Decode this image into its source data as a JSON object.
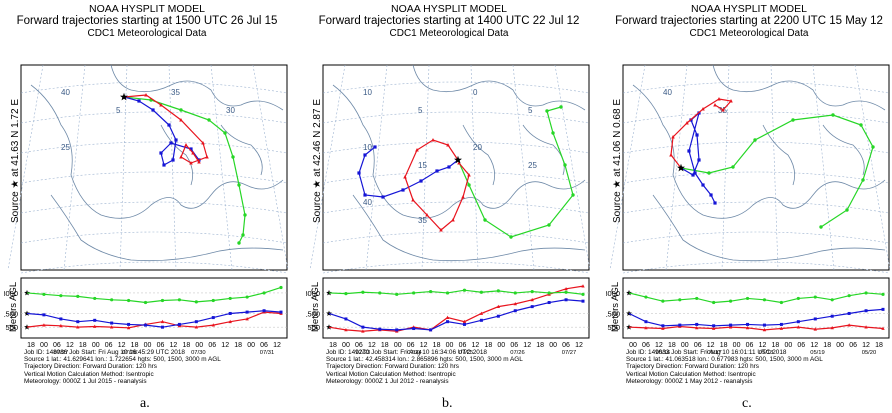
{
  "panels": [
    {
      "label": "a.",
      "title1": "NOAA HYSPLIT MODEL",
      "title2": "Forward trajectories starting at 1500 UTC 26 Jul 15",
      "title3": "CDC1 Meteorological Data",
      "side_label": "Source ★ at 41.63 N 1.72 E",
      "meters_label": "Meters AGL",
      "map_numbers": [
        "40",
        "5",
        "35",
        "30",
        "25"
      ],
      "height_ticks_left": [
        "3000",
        "1500",
        "500"
      ],
      "height_ticks_right": [
        "3500",
        "3000",
        "2500",
        "2000",
        "1500",
        "1000",
        "500"
      ],
      "time_ticks": [
        "18",
        "00",
        "06",
        "12",
        "18",
        "00",
        "06",
        "12",
        "18",
        "00",
        "06",
        "12",
        "18",
        "00",
        "06",
        "12",
        "18",
        "00",
        "06",
        "12"
      ],
      "date_ticks": [
        "07/27",
        "07/28",
        "07/30",
        "07/31"
      ],
      "footer": [
        "Job ID: 148086        Job Start: Fri Aug 10 16:45:29 UTC 2018",
        "Source 1 lat.: 41.629641 lon.: 1.722654  hgts: 500, 1500, 3000 m AGL",
        "Trajectory Direction: Forward     Duration: 120 hrs",
        "Vertical Motion Calculation Method:      Isentropic",
        "Meteorology: 0000Z 1 Jul 2015 - reanalysis"
      ]
    },
    {
      "label": "b.",
      "title1": "NOAA HYSPLIT MODEL",
      "title2": "Forward trajectories starting at 1400 UTC 22 Jul 12",
      "title3": "CDC1 Meteorological Data",
      "side_label": "Source ★ at 42.46 N 2.87 E",
      "meters_label": "Meters AGL",
      "map_numbers": [
        "10",
        "5",
        "0",
        "5",
        "10",
        "15",
        "20",
        "25",
        "40",
        "35"
      ],
      "height_ticks_left": [
        "3000",
        "1500",
        "500"
      ],
      "height_ticks_right": [
        "3500",
        "3000",
        "2500",
        "2000",
        "1500",
        "1000",
        "500"
      ],
      "time_ticks": [
        "18",
        "00",
        "06",
        "12",
        "18",
        "00",
        "06",
        "12",
        "18",
        "00",
        "06",
        "12",
        "18",
        "00",
        "06",
        "12",
        "18",
        "00",
        "06",
        "12"
      ],
      "date_ticks": [
        "07/23",
        "07/24",
        "07/25",
        "07/26",
        "07/27"
      ],
      "footer": [
        "Job ID: 149270        Job Start: Fri Aug 10 16:34:06 UTC 2018",
        "Source 1 lat.: 42.458314 lon.: 2.865896  hgts: 500, 1500, 3000 m AGL",
        "Trajectory Direction: Forward     Duration: 120 hrs",
        "Vertical Motion Calculation Method:      Isentropic",
        "Meteorology: 0000Z 1 Jul 2012 - reanalysis"
      ]
    },
    {
      "label": "c.",
      "title1": "NOAA HYSPLIT MODEL",
      "title2": "Forward trajectories starting at 2200 UTC 15 May 12",
      "title3": "CDC1 Meteorological Data",
      "side_label": "Source ★ at 41.06 N 0.68 E",
      "meters_label": "Meters AGL",
      "map_numbers": [
        "40",
        "35"
      ],
      "height_ticks_left": [
        "3000",
        "1500",
        "500"
      ],
      "height_ticks_right": [
        "3000",
        "2000",
        "1000"
      ],
      "time_ticks": [
        "00",
        "06",
        "12",
        "18",
        "00",
        "06",
        "12",
        "18",
        "00",
        "06",
        "12",
        "18",
        "00",
        "06",
        "12",
        "18",
        "00",
        "06",
        "12",
        "18"
      ],
      "date_ticks": [
        "05/16",
        "05/17",
        "05/18",
        "05/19",
        "05/20"
      ],
      "footer": [
        "Job ID: 149033        Job Start: Fri Aug 10 16:01:11 UTC 2018",
        "Source 1 lat.: 41.063518 lon.: 0.677983  hgts: 500, 1500, 3000 m AGL",
        "Trajectory Direction: Forward     Duration: 120 hrs",
        "Vertical Motion Calculation Method:      Isentropic",
        "Meteorology: 0000Z 1 May 2012 - reanalysis"
      ]
    }
  ],
  "colors": {
    "red": "#e8141e",
    "blue": "#1515d6",
    "green": "#26d626",
    "grid": "#9db3d0",
    "coast": "#6f8aa8"
  },
  "chart_data": [
    {
      "type": "line",
      "title": "NOAA HYSPLIT MODEL Forward trajectories starting at 1500 UTC 26 Jul 15",
      "ylabel": "Meters AGL",
      "start_heights_m": [
        500,
        1500,
        3000
      ],
      "series": [
        {
          "color": "red",
          "start_height_m": 500,
          "height_m": [
            500,
            650,
            600,
            500,
            550,
            500,
            450,
            700,
            900,
            600,
            500,
            650,
            900,
            1100,
            1600,
            1500
          ]
        },
        {
          "color": "blue",
          "start_height_m": 1500,
          "height_m": [
            1500,
            1400,
            1100,
            900,
            1000,
            800,
            700,
            650,
            500,
            700,
            900,
            1200,
            1500,
            1600,
            1700,
            1600
          ]
        },
        {
          "color": "green",
          "start_height_m": 3000,
          "height_m": [
            3000,
            2900,
            2800,
            2750,
            2600,
            2500,
            2450,
            2300,
            2450,
            2500,
            2350,
            2450,
            2600,
            2700,
            3000,
            3400
          ]
        }
      ]
    },
    {
      "type": "line",
      "title": "NOAA HYSPLIT MODEL Forward trajectories starting at 1400 UTC 22 Jul 12",
      "ylabel": "Meters AGL",
      "start_heights_m": [
        500,
        1500,
        3000
      ],
      "series": [
        {
          "color": "red",
          "start_height_m": 500,
          "height_m": [
            500,
            300,
            200,
            300,
            200,
            500,
            300,
            1200,
            900,
            1500,
            2000,
            2200,
            2500,
            2900,
            3300,
            3500
          ]
        },
        {
          "color": "blue",
          "start_height_m": 1500,
          "height_m": [
            1500,
            1100,
            500,
            350,
            300,
            400,
            300,
            900,
            700,
            1000,
            1300,
            1700,
            2000,
            2300,
            2500,
            2400
          ]
        },
        {
          "color": "green",
          "start_height_m": 3000,
          "height_m": [
            3000,
            2950,
            3050,
            3000,
            2900,
            3000,
            3100,
            3000,
            3200,
            3050,
            3150,
            3000,
            3100,
            3000,
            3050,
            2900
          ]
        }
      ]
    },
    {
      "type": "line",
      "title": "NOAA HYSPLIT MODEL Forward trajectories starting at 2200 UTC 15 May 12",
      "ylabel": "Meters AGL",
      "start_heights_m": [
        500,
        1500,
        3000
      ],
      "series": [
        {
          "color": "red",
          "start_height_m": 500,
          "height_m": [
            500,
            450,
            400,
            550,
            450,
            400,
            500,
            450,
            300,
            400,
            500,
            350,
            450,
            650,
            500,
            400
          ]
        },
        {
          "color": "blue",
          "start_height_m": 1500,
          "height_m": [
            1500,
            900,
            600,
            650,
            700,
            600,
            650,
            700,
            650,
            700,
            900,
            1100,
            1300,
            1500,
            1700,
            1800
          ]
        },
        {
          "color": "green",
          "start_height_m": 3000,
          "height_m": [
            3000,
            2700,
            2400,
            2500,
            2600,
            2300,
            2400,
            2600,
            2500,
            2300,
            2600,
            2700,
            2500,
            2800,
            3000,
            2900
          ]
        }
      ]
    }
  ]
}
